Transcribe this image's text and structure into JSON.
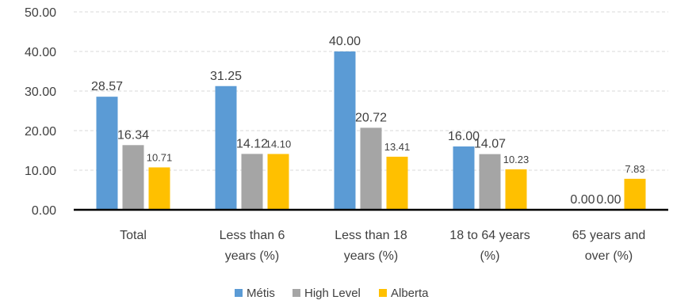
{
  "chart_data": {
    "type": "bar",
    "title": "",
    "xlabel": "",
    "ylabel": "",
    "ylim": [
      0,
      50
    ],
    "yticks": [
      "0.00",
      "10.00",
      "20.00",
      "30.00",
      "40.00",
      "50.00"
    ],
    "grid": true,
    "legend_position": "bottom",
    "categories": [
      [
        "Total"
      ],
      [
        "Less than 6",
        "years (%)"
      ],
      [
        "Less than 18",
        "years (%)"
      ],
      [
        "18 to 64 years",
        "(%)"
      ],
      [
        "65 years and",
        "over (%)"
      ]
    ],
    "series": [
      {
        "name": "Métis",
        "color": "#5B9BD5",
        "values": [
          28.57,
          31.25,
          40.0,
          16.0,
          0.0
        ],
        "labels": [
          "28.57",
          "31.25",
          "40.00",
          "16.00",
          "0.00"
        ]
      },
      {
        "name": "High Level",
        "color": "#A5A5A5",
        "values": [
          16.34,
          14.12,
          20.72,
          14.07,
          0.0
        ],
        "labels": [
          "16.34",
          "14.12",
          "20.72",
          "14.07",
          "0.00"
        ]
      },
      {
        "name": "Alberta",
        "color": "#FFC000",
        "values": [
          10.71,
          14.1,
          13.41,
          10.23,
          7.83
        ],
        "labels": [
          "10.71",
          "14.10",
          "13.41",
          "10.23",
          "7.83"
        ]
      }
    ]
  }
}
